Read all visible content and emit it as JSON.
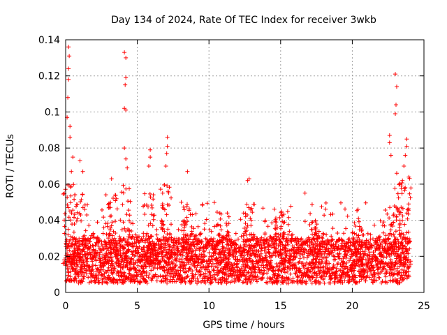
{
  "chart_data": {
    "type": "scatter",
    "title": "Day 134 of 2024, Rate Of TEC Index for receiver 3wkb",
    "xlabel": "GPS time / hours",
    "ylabel": "ROTI / TECUs",
    "xlim": [
      0,
      25
    ],
    "ylim": [
      0,
      0.14
    ],
    "xticks": [
      0,
      5,
      10,
      15,
      20,
      25
    ],
    "xtick_labels": [
      "0",
      "5",
      "10",
      "15",
      "20",
      "25"
    ],
    "yticks": [
      0,
      0.02,
      0.04,
      0.06,
      0.08,
      0.1,
      0.12,
      0.14
    ],
    "ytick_labels": [
      "0",
      "0.02",
      "0.04",
      "0.06",
      "0.08",
      "0.1",
      "0.12",
      "0.14"
    ],
    "grid": true,
    "marker": "plus",
    "color": "#ff0000",
    "data_range_x": [
      0,
      24
    ],
    "baseline_band": [
      0.005,
      0.03
    ],
    "peaks": [
      {
        "x": 0.2,
        "y": 0.136
      },
      {
        "x": 0.25,
        "y": 0.131
      },
      {
        "x": 0.2,
        "y": 0.124
      },
      {
        "x": 0.2,
        "y": 0.118
      },
      {
        "x": 0.15,
        "y": 0.108
      },
      {
        "x": 0.1,
        "y": 0.097
      },
      {
        "x": 0.3,
        "y": 0.092
      },
      {
        "x": 0.3,
        "y": 0.086
      },
      {
        "x": 0.5,
        "y": 0.075
      },
      {
        "x": 1.0,
        "y": 0.073
      },
      {
        "x": 0.4,
        "y": 0.067
      },
      {
        "x": 1.2,
        "y": 0.067
      },
      {
        "x": 4.1,
        "y": 0.133
      },
      {
        "x": 4.2,
        "y": 0.13
      },
      {
        "x": 4.2,
        "y": 0.119
      },
      {
        "x": 4.15,
        "y": 0.115
      },
      {
        "x": 4.1,
        "y": 0.102
      },
      {
        "x": 4.2,
        "y": 0.101
      },
      {
        "x": 4.1,
        "y": 0.08
      },
      {
        "x": 4.2,
        "y": 0.074
      },
      {
        "x": 4.3,
        "y": 0.069
      },
      {
        "x": 5.9,
        "y": 0.079
      },
      {
        "x": 5.9,
        "y": 0.075
      },
      {
        "x": 5.8,
        "y": 0.07
      },
      {
        "x": 7.1,
        "y": 0.086
      },
      {
        "x": 7.1,
        "y": 0.081
      },
      {
        "x": 7.05,
        "y": 0.077
      },
      {
        "x": 7.0,
        "y": 0.07
      },
      {
        "x": 8.5,
        "y": 0.067
      },
      {
        "x": 3.2,
        "y": 0.063
      },
      {
        "x": 12.8,
        "y": 0.063
      },
      {
        "x": 12.7,
        "y": 0.062
      },
      {
        "x": 16.7,
        "y": 0.055
      },
      {
        "x": 20.4,
        "y": 0.046
      },
      {
        "x": 23.0,
        "y": 0.121
      },
      {
        "x": 23.1,
        "y": 0.114
      },
      {
        "x": 23.05,
        "y": 0.104
      },
      {
        "x": 23.0,
        "y": 0.099
      },
      {
        "x": 22.6,
        "y": 0.087
      },
      {
        "x": 22.6,
        "y": 0.083
      },
      {
        "x": 23.8,
        "y": 0.085
      },
      {
        "x": 23.8,
        "y": 0.081
      },
      {
        "x": 23.7,
        "y": 0.076
      },
      {
        "x": 22.7,
        "y": 0.076
      },
      {
        "x": 23.6,
        "y": 0.07
      },
      {
        "x": 23.1,
        "y": 0.066
      },
      {
        "x": 23.5,
        "y": 0.062
      }
    ]
  }
}
